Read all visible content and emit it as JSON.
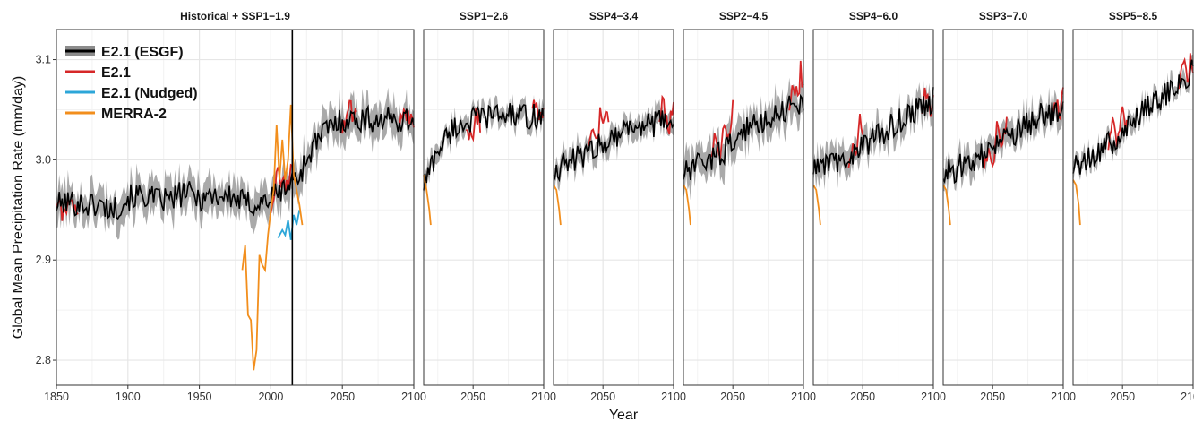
{
  "chart_data": {
    "type": "line",
    "xlabel": "Year",
    "ylabel": "Global Mean Precipitation Rate (mm/day)",
    "ylim": [
      2.775,
      3.13
    ],
    "y_ticks": [
      2.8,
      2.9,
      3.0,
      3.1
    ],
    "y_tick_labels": [
      "2.8",
      "2.9",
      "3.0",
      "3.1"
    ],
    "grid": true,
    "legend_position": "top-left",
    "legend": [
      {
        "label": "E2.1 (ESGF)",
        "color": "#000000",
        "band_color": "#8c8c8c"
      },
      {
        "label": "E2.1",
        "color": "#d62728"
      },
      {
        "label": "E2.1 (Nudged)",
        "color": "#2ca6d8"
      },
      {
        "label": "MERRA-2",
        "color": "#f28e1c"
      }
    ],
    "colors": {
      "esgf": "#000000",
      "esgf_band": "#9a9a9a",
      "e21": "#d62728",
      "nudged": "#2ca6d8",
      "merra2": "#f28e1c"
    },
    "panels": [
      {
        "title": "Historical + SSP1−1.9",
        "xlim": [
          1850,
          2100
        ],
        "x_ticks": [
          1850,
          1900,
          1950,
          2000,
          2050,
          2100
        ],
        "x_tick_labels": [
          "1850",
          "1900",
          "1950",
          "2000",
          "2050",
          "2100"
        ],
        "divider_x": 2015,
        "esgf_mean": [
          [
            1850,
            2.955
          ],
          [
            1860,
            2.958
          ],
          [
            1870,
            2.955
          ],
          [
            1880,
            2.955
          ],
          [
            1890,
            2.95
          ],
          [
            1900,
            2.962
          ],
          [
            1910,
            2.965
          ],
          [
            1920,
            2.96
          ],
          [
            1930,
            2.96
          ],
          [
            1940,
            2.968
          ],
          [
            1950,
            2.962
          ],
          [
            1960,
            2.965
          ],
          [
            1970,
            2.963
          ],
          [
            1980,
            2.958
          ],
          [
            1990,
            2.955
          ],
          [
            2000,
            2.962
          ],
          [
            2010,
            2.972
          ],
          [
            2020,
            2.985
          ],
          [
            2030,
            3.015
          ],
          [
            2040,
            3.032
          ],
          [
            2050,
            3.04
          ],
          [
            2060,
            3.04
          ],
          [
            2070,
            3.04
          ],
          [
            2080,
            3.04
          ],
          [
            2090,
            3.04
          ],
          [
            2100,
            3.04
          ]
        ],
        "esgf_half_width": 0.015,
        "e21": [
          [
            1850,
            2.958
          ],
          [
            1855,
            2.945
          ],
          [
            1860,
            2.965
          ],
          [
            1865,
            2.948
          ],
          [
            2000,
            2.955
          ],
          [
            2005,
            2.985
          ],
          [
            2010,
            2.975
          ],
          [
            2015,
            2.99
          ],
          [
            2050,
            3.035
          ],
          [
            2055,
            3.05
          ],
          [
            2060,
            3.045
          ],
          [
            2090,
            3.038
          ],
          [
            2095,
            3.048
          ],
          [
            2100,
            3.042
          ]
        ],
        "nudged": [
          [
            2005,
            2.922
          ],
          [
            2008,
            2.93
          ],
          [
            2010,
            2.925
          ],
          [
            2012,
            2.94
          ],
          [
            2014,
            2.92
          ],
          [
            2016,
            2.945
          ],
          [
            2018,
            2.935
          ],
          [
            2020,
            2.95
          ]
        ],
        "merra2": [
          [
            1980,
            2.89
          ],
          [
            1982,
            2.915
          ],
          [
            1984,
            2.845
          ],
          [
            1986,
            2.84
          ],
          [
            1988,
            2.79
          ],
          [
            1990,
            2.81
          ],
          [
            1992,
            2.905
          ],
          [
            1994,
            2.895
          ],
          [
            1996,
            2.89
          ],
          [
            1998,
            2.925
          ],
          [
            2000,
            2.95
          ],
          [
            2002,
            2.97
          ],
          [
            2004,
            3.035
          ],
          [
            2006,
            2.98
          ],
          [
            2008,
            3.02
          ],
          [
            2010,
            2.98
          ],
          [
            2012,
            3.0
          ],
          [
            2014,
            3.055
          ],
          [
            2016,
            2.985
          ],
          [
            2018,
            2.97
          ],
          [
            2020,
            2.955
          ],
          [
            2022,
            2.935
          ]
        ]
      },
      {
        "title": "SSP1−2.6",
        "xlim": [
          2015,
          2100
        ],
        "x_ticks": [
          2050,
          2100
        ],
        "x_tick_labels": [
          "2050",
          "2100"
        ],
        "esgf_mean": [
          [
            2015,
            2.975
          ],
          [
            2025,
            3.01
          ],
          [
            2035,
            3.03
          ],
          [
            2045,
            3.038
          ],
          [
            2055,
            3.042
          ],
          [
            2065,
            3.045
          ],
          [
            2075,
            3.045
          ],
          [
            2085,
            3.043
          ],
          [
            2100,
            3.043
          ]
        ],
        "esgf_half_width": 0.008,
        "e21": [
          [
            2045,
            3.02
          ],
          [
            2048,
            3.03
          ],
          [
            2050,
            3.018
          ],
          [
            2052,
            3.048
          ],
          [
            2055,
            3.035
          ],
          [
            2092,
            3.045
          ],
          [
            2094,
            3.06
          ],
          [
            2096,
            3.038
          ],
          [
            2098,
            3.05
          ],
          [
            2100,
            3.045
          ]
        ],
        "merra2": [
          [
            2015,
            2.985
          ],
          [
            2017,
            2.97
          ],
          [
            2019,
            2.95
          ],
          [
            2020,
            2.935
          ]
        ]
      },
      {
        "title": "SSP4−3.4",
        "xlim": [
          2015,
          2100
        ],
        "x_ticks": [
          2050,
          2100
        ],
        "x_tick_labels": [
          "2050",
          "2100"
        ],
        "esgf_mean": [
          [
            2015,
            2.99
          ],
          [
            2030,
            3.0
          ],
          [
            2045,
            3.012
          ],
          [
            2055,
            3.022
          ],
          [
            2065,
            3.03
          ],
          [
            2075,
            3.035
          ],
          [
            2085,
            3.035
          ],
          [
            2100,
            3.04
          ]
        ],
        "esgf_half_width": 0.01,
        "e21": [
          [
            2040,
            3.01
          ],
          [
            2042,
            3.03
          ],
          [
            2045,
            3.015
          ],
          [
            2048,
            3.045
          ],
          [
            2050,
            3.03
          ],
          [
            2052,
            3.052
          ],
          [
            2054,
            3.035
          ],
          [
            2090,
            3.04
          ],
          [
            2093,
            3.06
          ],
          [
            2096,
            3.03
          ],
          [
            2100,
            3.05
          ]
        ],
        "merra2": [
          [
            2015,
            2.975
          ],
          [
            2017,
            2.97
          ],
          [
            2019,
            2.95
          ],
          [
            2020,
            2.935
          ]
        ]
      },
      {
        "title": "SSP2−4.5",
        "xlim": [
          2015,
          2100
        ],
        "x_ticks": [
          2050,
          2100
        ],
        "x_tick_labels": [
          "2050",
          "2100"
        ],
        "esgf_mean": [
          [
            2015,
            2.985
          ],
          [
            2030,
            2.998
          ],
          [
            2045,
            3.01
          ],
          [
            2055,
            3.025
          ],
          [
            2065,
            3.035
          ],
          [
            2075,
            3.042
          ],
          [
            2085,
            3.05
          ],
          [
            2100,
            3.058
          ]
        ],
        "esgf_half_width": 0.015,
        "e21": [
          [
            2035,
            3.005
          ],
          [
            2038,
            3.03
          ],
          [
            2041,
            3.01
          ],
          [
            2044,
            3.035
          ],
          [
            2047,
            3.02
          ],
          [
            2050,
            3.05
          ],
          [
            2090,
            3.05
          ],
          [
            2093,
            3.075
          ],
          [
            2096,
            3.06
          ],
          [
            2098,
            3.09
          ],
          [
            2100,
            3.07
          ]
        ],
        "merra2": [
          [
            2015,
            2.975
          ],
          [
            2017,
            2.97
          ],
          [
            2019,
            2.95
          ],
          [
            2020,
            2.935
          ]
        ]
      },
      {
        "title": "SSP4−6.0",
        "xlim": [
          2015,
          2100
        ],
        "x_ticks": [
          2050,
          2100
        ],
        "x_tick_labels": [
          "2050",
          "2100"
        ],
        "esgf_mean": [
          [
            2015,
            2.99
          ],
          [
            2030,
            2.997
          ],
          [
            2045,
            3.007
          ],
          [
            2055,
            3.018
          ],
          [
            2065,
            3.028
          ],
          [
            2075,
            3.038
          ],
          [
            2085,
            3.047
          ],
          [
            2100,
            3.06
          ]
        ],
        "esgf_half_width": 0.012,
        "e21": [
          [
            2040,
            3.0
          ],
          [
            2043,
            3.02
          ],
          [
            2046,
            3.005
          ],
          [
            2048,
            3.045
          ],
          [
            2050,
            3.03
          ],
          [
            2092,
            3.055
          ],
          [
            2095,
            3.07
          ],
          [
            2098,
            3.05
          ],
          [
            2100,
            3.065
          ]
        ],
        "merra2": [
          [
            2015,
            2.975
          ],
          [
            2017,
            2.97
          ],
          [
            2019,
            2.95
          ],
          [
            2020,
            2.935
          ]
        ]
      },
      {
        "title": "SSP3−7.0",
        "xlim": [
          2015,
          2100
        ],
        "x_ticks": [
          2050,
          2100
        ],
        "x_tick_labels": [
          "2050",
          "2100"
        ],
        "esgf_mean": [
          [
            2015,
            2.985
          ],
          [
            2030,
            2.995
          ],
          [
            2045,
            3.005
          ],
          [
            2055,
            3.015
          ],
          [
            2065,
            3.025
          ],
          [
            2075,
            3.035
          ],
          [
            2085,
            3.045
          ],
          [
            2100,
            3.05
          ]
        ],
        "esgf_half_width": 0.012,
        "e21": [
          [
            2044,
            2.985
          ],
          [
            2047,
            3.01
          ],
          [
            2050,
            2.995
          ],
          [
            2053,
            3.03
          ],
          [
            2056,
            3.01
          ],
          [
            2060,
            3.04
          ],
          [
            2092,
            3.04
          ],
          [
            2095,
            3.06
          ],
          [
            2098,
            3.045
          ],
          [
            2100,
            3.07
          ]
        ],
        "merra2": [
          [
            2015,
            2.975
          ],
          [
            2017,
            2.97
          ],
          [
            2019,
            2.95
          ],
          [
            2020,
            2.935
          ]
        ]
      },
      {
        "title": "SSP5−8.5",
        "xlim": [
          2015,
          2100
        ],
        "x_ticks": [
          2050,
          2100
        ],
        "x_tick_labels": [
          "2050",
          "2100"
        ],
        "esgf_mean": [
          [
            2015,
            2.99
          ],
          [
            2030,
            3.005
          ],
          [
            2045,
            3.02
          ],
          [
            2055,
            3.035
          ],
          [
            2065,
            3.05
          ],
          [
            2075,
            3.06
          ],
          [
            2085,
            3.072
          ],
          [
            2100,
            3.09
          ]
        ],
        "esgf_half_width": 0.008,
        "e21": [
          [
            2040,
            3.01
          ],
          [
            2043,
            3.035
          ],
          [
            2046,
            3.02
          ],
          [
            2050,
            3.05
          ],
          [
            2053,
            3.03
          ],
          [
            2090,
            3.07
          ],
          [
            2093,
            3.1
          ],
          [
            2096,
            3.075
          ],
          [
            2098,
            3.1
          ],
          [
            2100,
            3.09
          ]
        ],
        "merra2": [
          [
            2015,
            2.98
          ],
          [
            2017,
            2.975
          ],
          [
            2019,
            2.955
          ],
          [
            2020,
            2.935
          ]
        ]
      }
    ]
  }
}
